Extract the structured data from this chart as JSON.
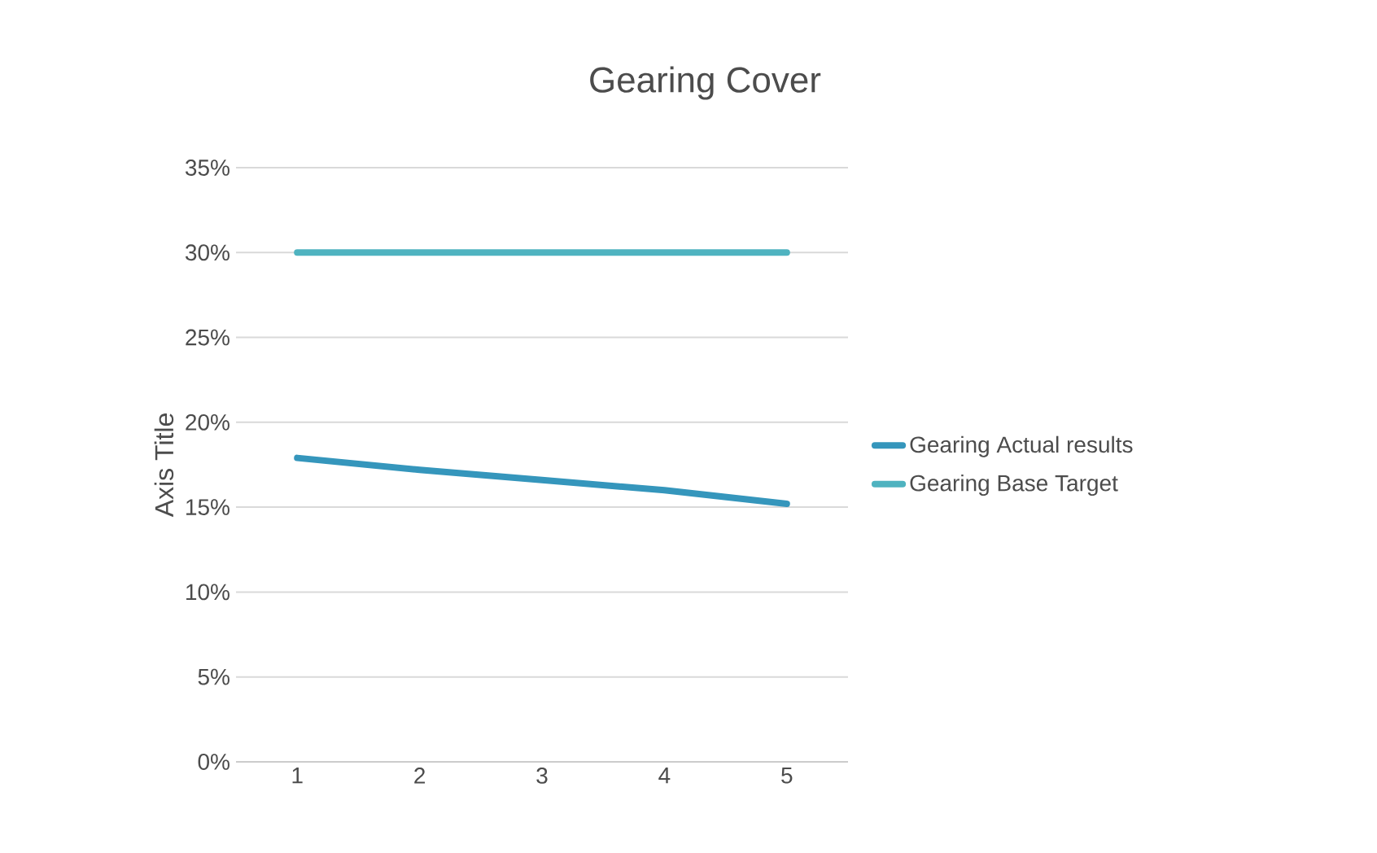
{
  "chart_data": {
    "type": "line",
    "title": "Gearing  Cover",
    "ylabel": "Axis Title",
    "categories": [
      "1",
      "2",
      "3",
      "4",
      "5"
    ],
    "series": [
      {
        "name": "Gearing Actual results",
        "color": "#3596bc",
        "values": [
          0.179,
          0.172,
          0.166,
          0.16,
          0.152
        ]
      },
      {
        "name": "Gearing Base Target",
        "color": "#4fb3c0",
        "values": [
          0.3,
          0.3,
          0.3,
          0.3,
          0.3
        ]
      }
    ],
    "ylim": [
      0,
      0.35
    ],
    "yticks": [
      {
        "value": 0,
        "label": "0%"
      },
      {
        "value": 0.05,
        "label": "5%"
      },
      {
        "value": 0.1,
        "label": "10%"
      },
      {
        "value": 0.15,
        "label": "15%"
      },
      {
        "value": 0.2,
        "label": "20%"
      },
      {
        "value": 0.25,
        "label": "25%"
      },
      {
        "value": 0.3,
        "label": "30%"
      },
      {
        "value": 0.35,
        "label": "35%"
      }
    ],
    "grid": "y",
    "legend": "right",
    "marker": "none",
    "line_style": "solid"
  }
}
